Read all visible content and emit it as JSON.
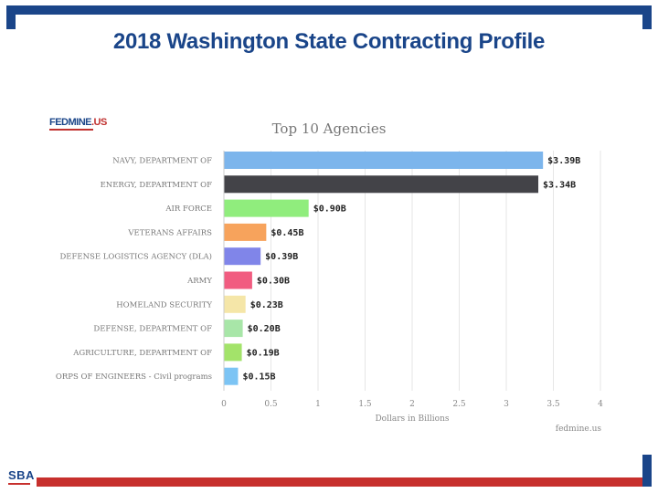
{
  "slide": {
    "title": "2018 Washington State Contracting Profile"
  },
  "logos": {
    "fedmine_main": "FEDMINE",
    "fedmine_suffix": ".US",
    "sba": "SBA"
  },
  "colors": {
    "frame_blue": "#1a4589",
    "frame_red": "#c7302d"
  },
  "chart_data": {
    "type": "bar",
    "orientation": "horizontal",
    "title": "Top 10 Agencies",
    "xlabel": "Dollars in Billions",
    "ylabel": "",
    "xlim": [
      0,
      4
    ],
    "xticks": [
      0,
      0.5,
      1,
      1.5,
      2,
      2.5,
      3,
      3.5,
      4
    ],
    "xtick_labels": [
      "0",
      "0.5",
      "1",
      "1.5",
      "2",
      "2.5",
      "3",
      "3.5",
      "4"
    ],
    "grid": true,
    "credit": "fedmine.us",
    "categories": [
      "NAVY, DEPARTMENT OF",
      "ENERGY, DEPARTMENT OF",
      "AIR FORCE",
      "VETERANS AFFAIRS",
      "DEFENSE LOGISTICS AGENCY (DLA)",
      "ARMY",
      "HOMELAND SECURITY",
      "DEFENSE, DEPARTMENT OF",
      "AGRICULTURE, DEPARTMENT OF",
      "ORPS OF ENGINEERS - Civil programs"
    ],
    "values": [
      3.39,
      3.34,
      0.9,
      0.45,
      0.39,
      0.3,
      0.23,
      0.2,
      0.19,
      0.15
    ],
    "value_labels": [
      "$3.39B",
      "$3.34B",
      "$0.90B",
      "$0.45B",
      "$0.39B",
      "$0.30B",
      "$0.23B",
      "$0.20B",
      "$0.19B",
      "$0.15B"
    ],
    "bar_colors": [
      "#7cb5ec",
      "#434348",
      "#90ed7d",
      "#f7a35c",
      "#8085e9",
      "#f15c80",
      "#f5e6a8",
      "#a8e6a8",
      "#a3e36a",
      "#7cc4f4"
    ]
  }
}
